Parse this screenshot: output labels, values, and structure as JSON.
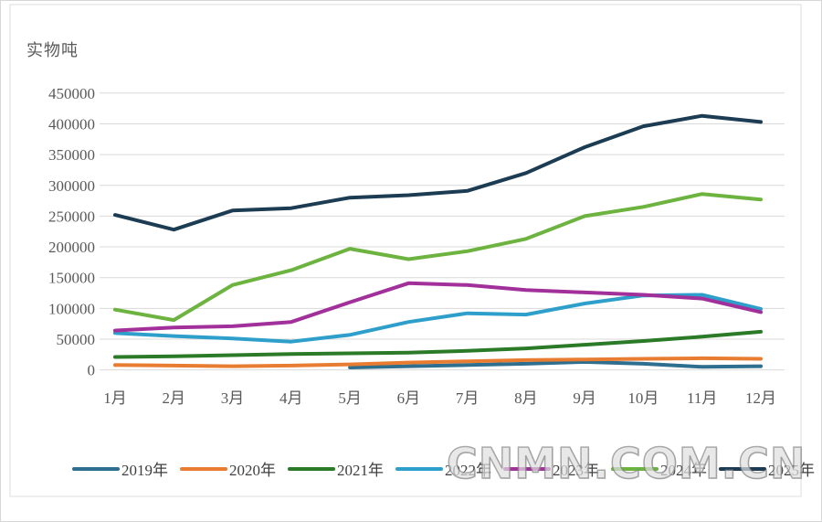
{
  "title": "实物吨",
  "watermark": "CNMN.COM.CN",
  "chart_data": {
    "type": "line",
    "title": "",
    "ylabel": "实物吨",
    "xlabel": "",
    "grid": true,
    "legend_position": "bottom",
    "ylim": [
      0,
      450000
    ],
    "y_ticks": [
      0,
      50000,
      100000,
      150000,
      200000,
      250000,
      300000,
      350000,
      400000,
      450000
    ],
    "categories": [
      "1月",
      "2月",
      "3月",
      "4月",
      "5月",
      "6月",
      "7月",
      "8月",
      "9月",
      "10月",
      "11月",
      "12月"
    ],
    "series": [
      {
        "name": "2019年",
        "color": "#2E6E8E",
        "values": [
          null,
          null,
          null,
          null,
          4000,
          6000,
          8000,
          10000,
          13000,
          10000,
          5000,
          6000
        ]
      },
      {
        "name": "2020年",
        "color": "#E87D31",
        "values": [
          8000,
          7000,
          6000,
          7000,
          9000,
          12000,
          14000,
          16000,
          17000,
          18000,
          19000,
          18000
        ]
      },
      {
        "name": "2021年",
        "color": "#2A7A27",
        "values": [
          21000,
          22000,
          24000,
          26000,
          27000,
          28000,
          31000,
          35000,
          41000,
          47000,
          54000,
          62000
        ]
      },
      {
        "name": "2022年",
        "color": "#2E9FCB",
        "values": [
          60000,
          55000,
          51000,
          46000,
          57000,
          78000,
          92000,
          90000,
          108000,
          121000,
          122000,
          99000
        ]
      },
      {
        "name": "2023年",
        "color": "#A2309B",
        "values": [
          64000,
          69000,
          71000,
          78000,
          110000,
          141000,
          138000,
          130000,
          126000,
          122000,
          116000,
          94000
        ]
      },
      {
        "name": "2024年",
        "color": "#6CB33F",
        "values": [
          98000,
          81000,
          138000,
          162000,
          197000,
          180000,
          193000,
          213000,
          250000,
          265000,
          286000,
          277000
        ]
      },
      {
        "name": "2025年",
        "color": "#1B3C53",
        "values": [
          252000,
          228000,
          259000,
          263000,
          280000,
          284000,
          291000,
          320000,
          362000,
          396000,
          413000,
          403000
        ]
      }
    ]
  }
}
